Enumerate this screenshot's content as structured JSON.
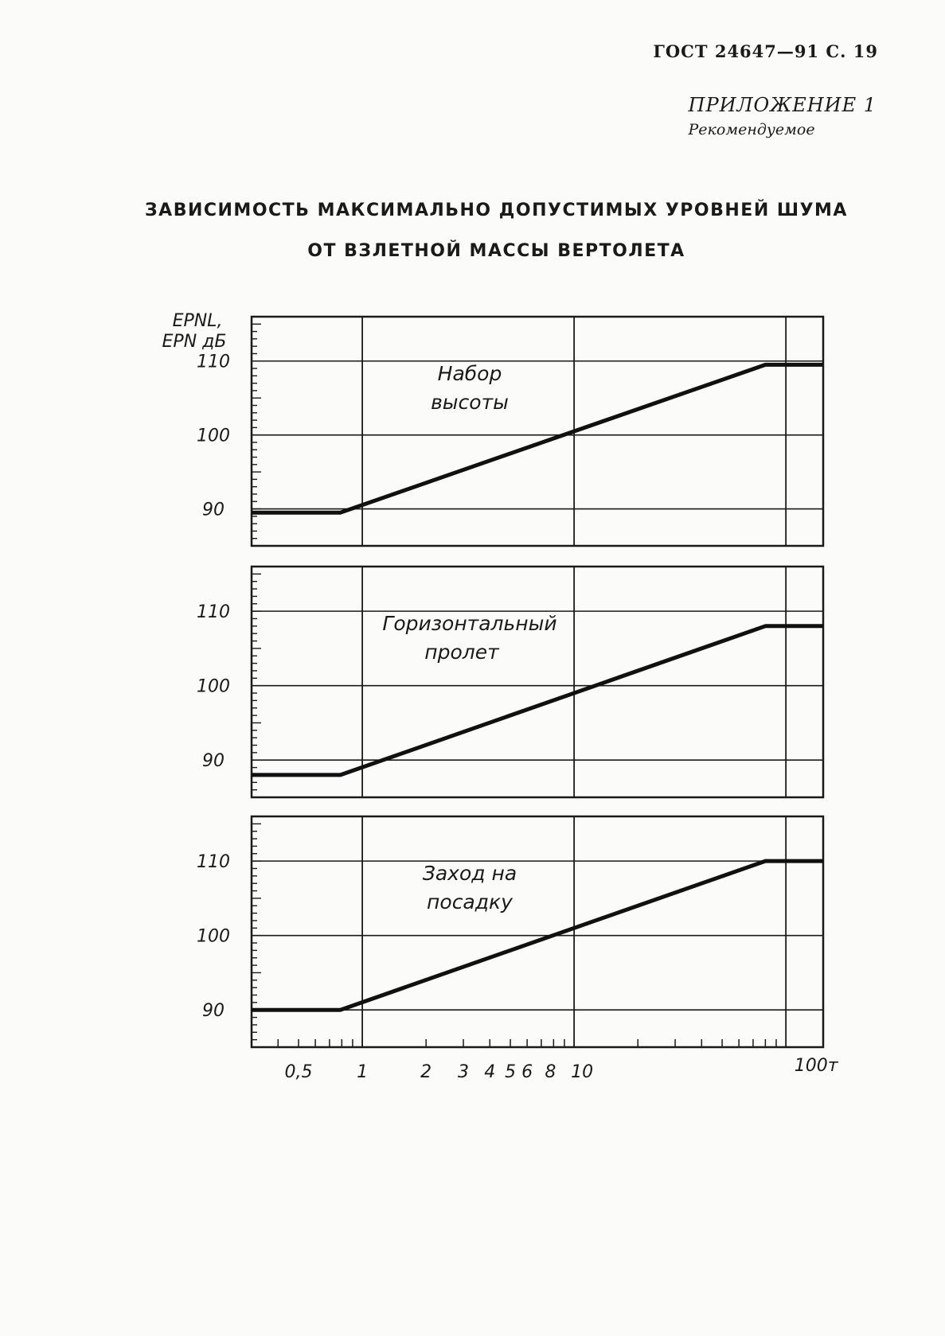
{
  "header": {
    "doc_ref": "ГОСТ 24647—91 С. 19",
    "appendix_label": "ПРИЛОЖЕНИЕ 1",
    "appendix_status": "Рекомендуемое"
  },
  "title": {
    "line1": "ЗАВИСИМОСТЬ МАКСИМАЛЬНО ДОПУСТИМЫХ УРОВНЕЙ ШУМА",
    "line2": "ОТ ВЗЛЕТНОЙ МАССЫ ВЕРТОЛЕТА"
  },
  "chart_data": {
    "type": "line",
    "ylabel_line1": "EPNL,",
    "ylabel_line2": "EPN дБ",
    "xscale": "log",
    "xlim": [
      0.3,
      150
    ],
    "x_ticks": [
      {
        "value": 0.5,
        "label": "0,5"
      },
      {
        "value": 1,
        "label": "1"
      },
      {
        "value": 2,
        "label": "2"
      },
      {
        "value": 3,
        "label": "3"
      },
      {
        "value": 4,
        "label": "4"
      },
      {
        "value": 5,
        "label": "5"
      },
      {
        "value": 6,
        "label": "6"
      },
      {
        "value": 8,
        "label": "8"
      },
      {
        "value": 10,
        "label": "10"
      },
      {
        "value": 100,
        "label": "100т"
      }
    ],
    "grid_x": [
      1,
      10,
      100
    ],
    "grid": true,
    "panels": [
      {
        "annotation": [
          "Набор",
          "высоты"
        ],
        "ylim": [
          85,
          116
        ],
        "y_ticks": [
          90,
          100,
          110
        ],
        "points": [
          [
            0.3,
            89.5
          ],
          [
            0.788,
            89.5
          ],
          [
            80,
            109.5
          ],
          [
            150,
            109.5
          ]
        ]
      },
      {
        "annotation": [
          "Горизонтальный",
          "пролет"
        ],
        "ylim": [
          85,
          116
        ],
        "y_ticks": [
          90,
          100,
          110
        ],
        "points": [
          [
            0.3,
            88
          ],
          [
            0.788,
            88
          ],
          [
            80,
            108
          ],
          [
            150,
            108
          ]
        ]
      },
      {
        "annotation": [
          "Заход на",
          "посадку"
        ],
        "ylim": [
          85,
          116
        ],
        "y_ticks": [
          90,
          100,
          110
        ],
        "points": [
          [
            0.3,
            90
          ],
          [
            0.788,
            90
          ],
          [
            80,
            110
          ],
          [
            150,
            110
          ]
        ]
      }
    ]
  }
}
